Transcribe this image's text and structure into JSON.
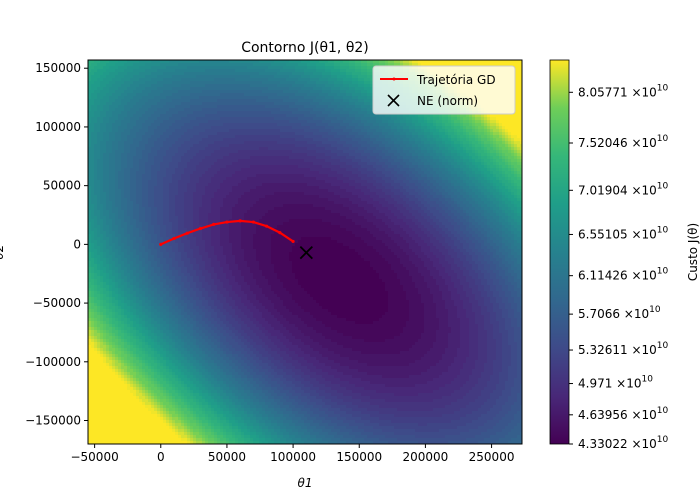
{
  "chart_data": {
    "type": "contour",
    "title": "Contorno J(θ1, θ2)",
    "xlabel": "θ1",
    "ylabel": "θ2",
    "xlim": [
      -55000,
      273000
    ],
    "ylim": [
      -170000,
      157000
    ],
    "xticks": [
      {
        "value": -50000,
        "label": "−50000"
      },
      {
        "value": 0,
        "label": "0"
      },
      {
        "value": 50000,
        "label": "50000"
      },
      {
        "value": 100000,
        "label": "100000"
      },
      {
        "value": 150000,
        "label": "150000"
      },
      {
        "value": 200000,
        "label": "200000"
      },
      {
        "value": 250000,
        "label": "250000"
      }
    ],
    "yticks": [
      {
        "value": 150000,
        "label": "150000"
      },
      {
        "value": 100000,
        "label": "100000"
      },
      {
        "value": 50000,
        "label": "50000"
      },
      {
        "value": 0,
        "label": "0"
      },
      {
        "value": -50000,
        "label": "−50000"
      },
      {
        "value": -100000,
        "label": "−100000"
      },
      {
        "value": -150000,
        "label": "−150000"
      }
    ],
    "contour_center": [
      135000,
      -30000
    ],
    "colorbar": {
      "label": "Custo J(θ)",
      "min": 43302200000.0,
      "max": 84000000000.0,
      "ticks": [
        {
          "value": 43302200000.0,
          "mantissa": "4.33022"
        },
        {
          "value": 46395600000.0,
          "mantissa": "4.63956"
        },
        {
          "value": 49710000000.0,
          "mantissa": "4.971"
        },
        {
          "value": 53261100000.0,
          "mantissa": "5.32611"
        },
        {
          "value": 57066000000.0,
          "mantissa": "5.7066"
        },
        {
          "value": 61142600000.0,
          "mantissa": "6.11426"
        },
        {
          "value": 65510500000.0,
          "mantissa": "6.55105"
        },
        {
          "value": 70190400000.0,
          "mantissa": "7.01904"
        },
        {
          "value": 75204600000.0,
          "mantissa": "7.52046"
        },
        {
          "value": 80577100000.0,
          "mantissa": "8.05771"
        }
      ],
      "times": "×10",
      "exponent": "10"
    },
    "series": [
      {
        "name": "Trajetória GD",
        "color": "#ff0000",
        "x": [
          0,
          10000,
          20000,
          30000,
          40000,
          50000,
          60000,
          70000,
          80000,
          90000,
          100000
        ],
        "y": [
          0,
          5000,
          9500,
          13500,
          17000,
          19000,
          20000,
          19000,
          15500,
          10000,
          2500
        ]
      },
      {
        "name": "NE (norm)",
        "marker": "x",
        "color": "#000000",
        "x": [
          110000
        ],
        "y": [
          -7000
        ]
      }
    ],
    "legend_position": "top-right"
  }
}
